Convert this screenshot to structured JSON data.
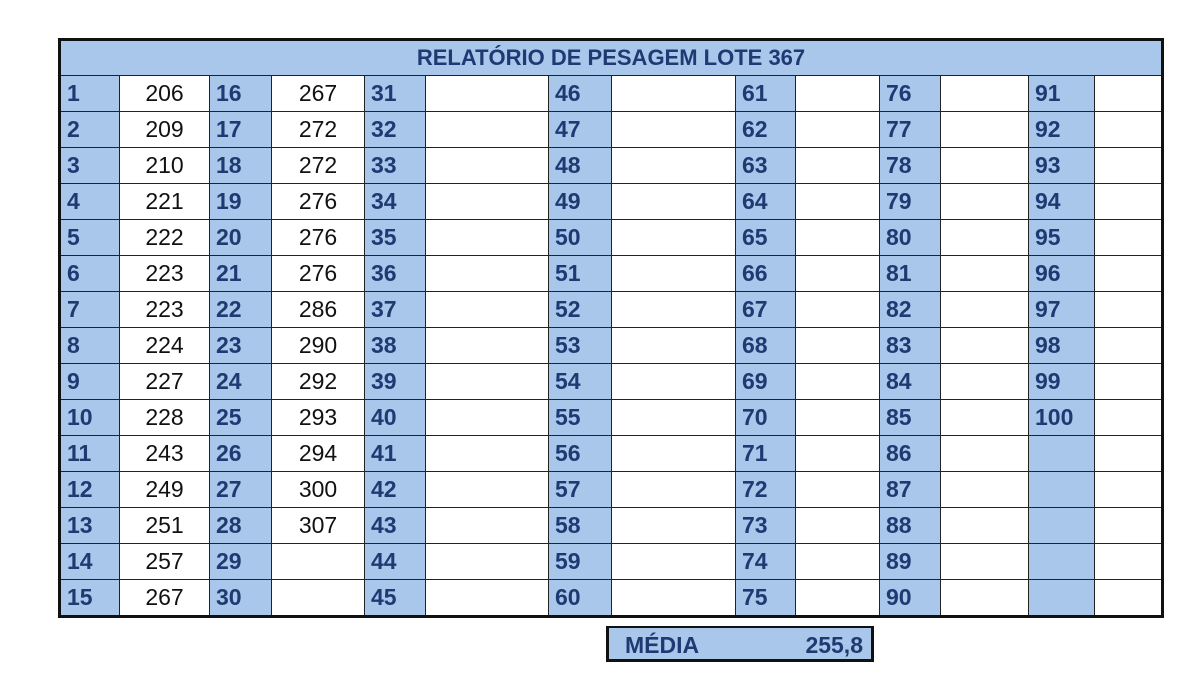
{
  "title": "RELATÓRIO DE PESAGEM LOTE 367",
  "indices": [
    "1",
    "2",
    "3",
    "4",
    "5",
    "6",
    "7",
    "8",
    "9",
    "10",
    "11",
    "12",
    "13",
    "14",
    "15",
    "16",
    "17",
    "18",
    "19",
    "20",
    "21",
    "22",
    "23",
    "24",
    "25",
    "26",
    "27",
    "28",
    "29",
    "30",
    "31",
    "32",
    "33",
    "34",
    "35",
    "36",
    "37",
    "38",
    "39",
    "40",
    "41",
    "42",
    "43",
    "44",
    "45",
    "46",
    "47",
    "48",
    "49",
    "50",
    "51",
    "52",
    "53",
    "54",
    "55",
    "56",
    "57",
    "58",
    "59",
    "60",
    "61",
    "62",
    "63",
    "64",
    "65",
    "66",
    "67",
    "68",
    "69",
    "70",
    "71",
    "72",
    "73",
    "74",
    "75",
    "76",
    "77",
    "78",
    "79",
    "80",
    "81",
    "82",
    "83",
    "84",
    "85",
    "86",
    "87",
    "88",
    "89",
    "90",
    "91",
    "92",
    "93",
    "94",
    "95",
    "96",
    "97",
    "98",
    "99",
    "100"
  ],
  "weights": [
    "206",
    "209",
    "210",
    "221",
    "222",
    "223",
    "223",
    "224",
    "227",
    "228",
    "243",
    "249",
    "251",
    "257",
    "267",
    "267",
    "272",
    "272",
    "276",
    "276",
    "276",
    "286",
    "290",
    "292",
    "293",
    "294",
    "300",
    "307"
  ],
  "summary": {
    "label": "MÉDIA",
    "value": "255,8"
  }
}
